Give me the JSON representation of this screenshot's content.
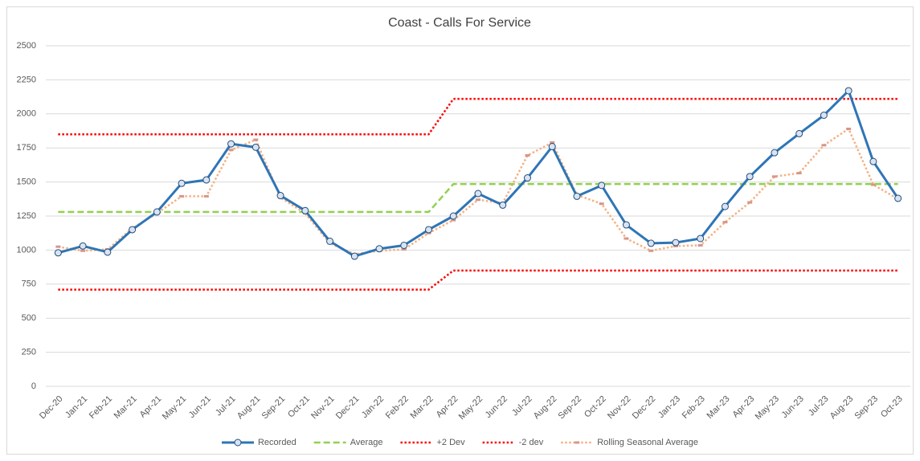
{
  "chart_data": {
    "type": "line",
    "title": "Coast - Calls For Service",
    "categories": [
      "Dec-20",
      "Jan-21",
      "Feb-21",
      "Mar-21",
      "Apr-21",
      "May-21",
      "Jun-21",
      "Jul-21",
      "Aug-21",
      "Sep-21",
      "Oct-21",
      "Nov-21",
      "Dec-21",
      "Jan-22",
      "Feb-22",
      "Mar-22",
      "Apr-22",
      "May-22",
      "Jun-22",
      "Jul-22",
      "Aug-22",
      "Sep-22",
      "Oct-22",
      "Nov-22",
      "Dec-22",
      "Jan-23",
      "Feb-23",
      "Mar-23",
      "Apr-23",
      "May-23",
      "Jun-23",
      "Jul-23",
      "Aug-23",
      "Sep-23",
      "Oct-23"
    ],
    "series": [
      {
        "name": "Recorded",
        "color": "#2e75b6",
        "dash": "solid",
        "marker": "circle",
        "values": [
          980,
          1030,
          985,
          1150,
          1280,
          1490,
          1515,
          1780,
          1755,
          1400,
          1290,
          1065,
          955,
          1010,
          1035,
          1150,
          1250,
          1415,
          1330,
          1530,
          1760,
          1395,
          1475,
          1185,
          1050,
          1055,
          1085,
          1320,
          1540,
          1715,
          1855,
          1990,
          2170,
          1650,
          1380
        ]
      },
      {
        "name": "Average",
        "color": "#92d050",
        "dash": "dashed",
        "marker": "none",
        "values": [
          1280,
          1280,
          1280,
          1280,
          1280,
          1280,
          1280,
          1280,
          1280,
          1280,
          1280,
          1280,
          1280,
          1280,
          1280,
          1280,
          1485,
          1485,
          1485,
          1485,
          1485,
          1485,
          1485,
          1485,
          1485,
          1485,
          1485,
          1485,
          1485,
          1485,
          1485,
          1485,
          1485,
          1485,
          1485
        ]
      },
      {
        "name": "+2 Dev",
        "color": "#ff0000",
        "dash": "dotted",
        "marker": "none",
        "values": [
          1850,
          1850,
          1850,
          1850,
          1850,
          1850,
          1850,
          1850,
          1850,
          1850,
          1850,
          1850,
          1850,
          1850,
          1850,
          1850,
          2110,
          2110,
          2110,
          2110,
          2110,
          2110,
          2110,
          2110,
          2110,
          2110,
          2110,
          2110,
          2110,
          2110,
          2110,
          2110,
          2110,
          2110,
          2110
        ]
      },
      {
        "name": "-2 dev",
        "color": "#ff0000",
        "dash": "dotted",
        "marker": "none",
        "values": [
          710,
          710,
          710,
          710,
          710,
          710,
          710,
          710,
          710,
          710,
          710,
          710,
          710,
          710,
          710,
          710,
          850,
          850,
          850,
          850,
          850,
          850,
          850,
          850,
          850,
          850,
          850,
          850,
          850,
          850,
          850,
          850,
          850,
          850,
          850
        ]
      },
      {
        "name": "Rolling Seasonal Average",
        "color": "#f4b183",
        "dash": "dotted",
        "marker": "square",
        "values": [
          1025,
          995,
          1005,
          1160,
          1270,
          1395,
          1395,
          1735,
          1810,
          1385,
          1270,
          1050,
          970,
          995,
          1005,
          1125,
          1220,
          1370,
          1345,
          1695,
          1790,
          1405,
          1340,
          1085,
          995,
          1030,
          1035,
          1205,
          1350,
          1540,
          1565,
          1770,
          1890,
          1480,
          1375
        ]
      }
    ],
    "ylim": [
      0,
      2500
    ],
    "yticks": [
      0,
      250,
      500,
      750,
      1000,
      1250,
      1500,
      1750,
      2000,
      2250,
      2500
    ],
    "grid": true,
    "legend": "bottom"
  }
}
